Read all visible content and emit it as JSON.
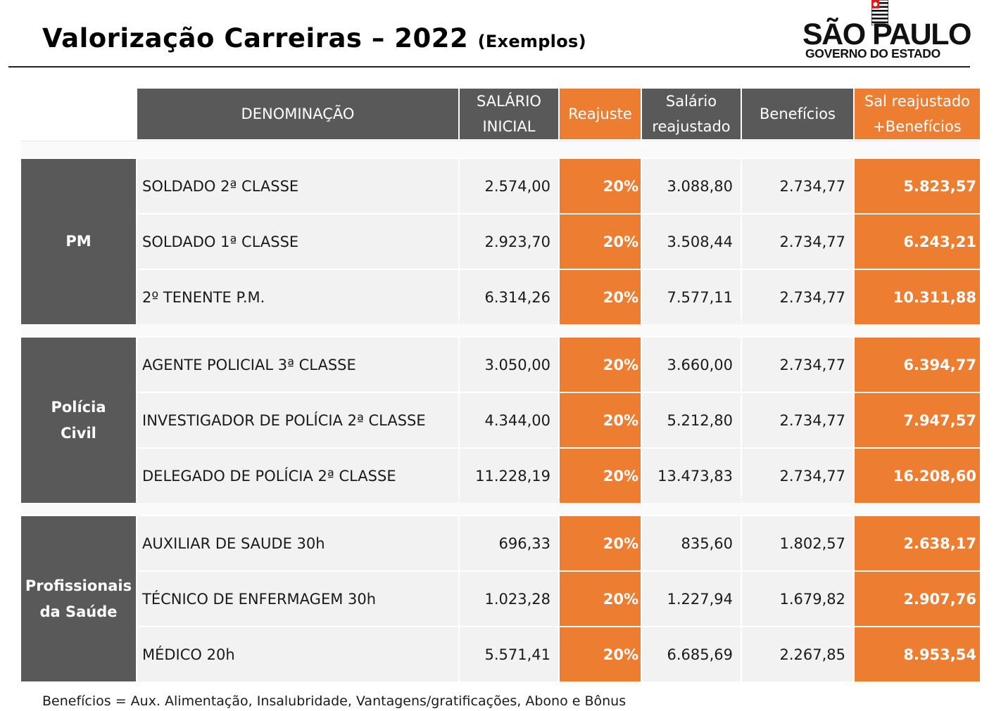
{
  "title": {
    "main": "Valorização Carreiras – 2022",
    "sub": "(Exemplos)"
  },
  "logo": {
    "line1": "SÃO PAULO",
    "line2": "GOVERNO DO ESTADO",
    "icon": "sao-paulo-flag-icon"
  },
  "colors": {
    "header_gray": "#595959",
    "accent_orange": "#ed7d31",
    "row_bg": "#f2f2f2"
  },
  "table": {
    "headers": [
      {
        "line1": "DENOMINAÇÃO",
        "line2": ""
      },
      {
        "line1": "SALÁRIO",
        "line2": "INICIAL"
      },
      {
        "line1": "Reajuste",
        "line2": ""
      },
      {
        "line1": "Salário",
        "line2": "reajustado"
      },
      {
        "line1": "Benefícios",
        "line2": ""
      },
      {
        "line1": "Sal reajustado",
        "line2": "+Benefícios"
      }
    ],
    "groups": [
      {
        "line1": "PM",
        "line2": "",
        "rows": [
          {
            "name": "SOLDADO  2ª CLASSE",
            "salario": "2.574,00",
            "reajuste": "20%",
            "reajustado": "3.088,80",
            "beneficios": "2.734,77",
            "total": "5.823,57"
          },
          {
            "name": "SOLDADO  1ª CLASSE",
            "salario": "2.923,70",
            "reajuste": "20%",
            "reajustado": "3.508,44",
            "beneficios": "2.734,77",
            "total": "6.243,21"
          },
          {
            "name": "2º TENENTE P.M.",
            "salario": "6.314,26",
            "reajuste": "20%",
            "reajustado": "7.577,11",
            "beneficios": "2.734,77",
            "total": "10.311,88"
          }
        ]
      },
      {
        "line1": "Polícia",
        "line2": "Civil",
        "rows": [
          {
            "name": "AGENTE POLICIAL  3ª CLASSE",
            "salario": "3.050,00",
            "reajuste": "20%",
            "reajustado": "3.660,00",
            "beneficios": "2.734,77",
            "total": "6.394,77"
          },
          {
            "name": "INVESTIGADOR DE POLÍCIA 2ª CLASSE",
            "salario": "4.344,00",
            "reajuste": "20%",
            "reajustado": "5.212,80",
            "beneficios": "2.734,77",
            "total": "7.947,57"
          },
          {
            "name": "DELEGADO DE POLÍCIA 2ª CLASSE",
            "salario": "11.228,19",
            "reajuste": "20%",
            "reajustado": "13.473,83",
            "beneficios": "2.734,77",
            "total": "16.208,60"
          }
        ]
      },
      {
        "line1": "Profissionais",
        "line2": "da Saúde",
        "rows": [
          {
            "name": "AUXILIAR DE SAUDE  30h",
            "salario": "696,33",
            "reajuste": "20%",
            "reajustado": "835,60",
            "beneficios": "1.802,57",
            "total": "2.638,17"
          },
          {
            "name": "TÉCNICO DE ENFERMAGEM   30h",
            "salario": "1.023,28",
            "reajuste": "20%",
            "reajustado": "1.227,94",
            "beneficios": "1.679,82",
            "total": "2.907,76"
          },
          {
            "name": "MÉDICO   20h",
            "salario": "5.571,41",
            "reajuste": "20%",
            "reajustado": "6.685,69",
            "beneficios": "2.267,85",
            "total": "8.953,54"
          }
        ]
      }
    ]
  },
  "footnote": "Benefícios = Aux. Alimentação, Insalubridade, Vantagens/gratificações, Abono e  Bônus"
}
